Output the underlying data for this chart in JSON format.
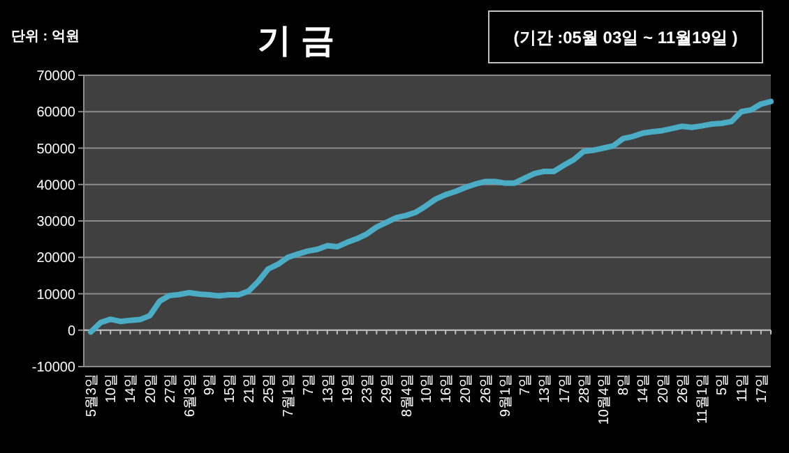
{
  "chart_data": {
    "type": "line",
    "title": "기 금",
    "subtitle": "(기간 :05월 03일 ~ 11월19일 )",
    "annotations": [
      "단위 : 억원"
    ],
    "categories": [
      "5월3일",
      null,
      "10일",
      null,
      "14일",
      null,
      "20일",
      null,
      "27일",
      null,
      "6월3일",
      null,
      "9일",
      null,
      "15일",
      null,
      "21일",
      null,
      "25일",
      null,
      "7월1일",
      null,
      "7일",
      null,
      "13일",
      null,
      "19일",
      null,
      "23일",
      null,
      "29일",
      null,
      "8월4일",
      null,
      "10일",
      null,
      "16일",
      null,
      "20일",
      null,
      "26일",
      null,
      "9월1일",
      null,
      "7일",
      null,
      "13일",
      null,
      "17일",
      null,
      "28일",
      null,
      "10월4일",
      null,
      "8일",
      null,
      "14일",
      null,
      "20일",
      null,
      "26일",
      null,
      "11월1일",
      null,
      "5일",
      null,
      "11일",
      null,
      "17일",
      null
    ],
    "series": [
      {
        "color": "#4bacc6",
        "values": [
          -500,
          2100,
          3000,
          2400,
          2700,
          2900,
          4000,
          8000,
          9500,
          9800,
          10300,
          9900,
          9700,
          9400,
          9700,
          9700,
          10700,
          13400,
          16800,
          18100,
          20000,
          20900,
          21700,
          22200,
          23200,
          22900,
          24100,
          25100,
          26400,
          28300,
          29600,
          30900,
          31500,
          32400,
          34100,
          36000,
          37200,
          38100,
          39200,
          40100,
          40800,
          40800,
          40400,
          40400,
          41700,
          43000,
          43600,
          43600,
          45300,
          46800,
          49100,
          49400,
          50000,
          50600,
          52600,
          53200,
          54100,
          54500,
          54800,
          55400,
          56000,
          55700,
          56100,
          56600,
          56800,
          57300,
          60000,
          60500,
          62100,
          62800
        ]
      }
    ],
    "ylim": [
      -10000,
      70000
    ],
    "yticks": [
      -10000,
      0,
      10000,
      20000,
      30000,
      40000,
      50000,
      60000,
      70000
    ],
    "grid": "y"
  }
}
